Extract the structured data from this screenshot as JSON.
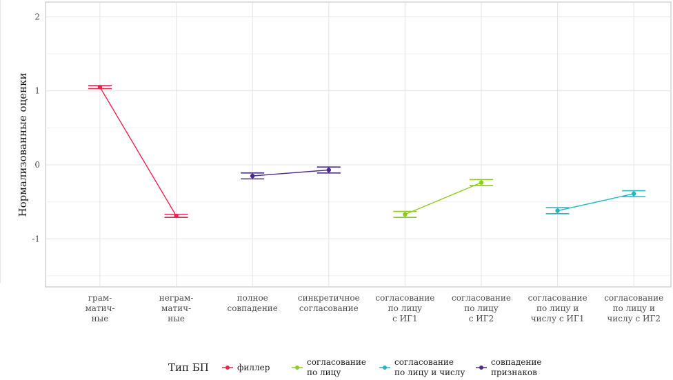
{
  "chart_data": {
    "type": "line",
    "ylabel": "Нормализованные оценки",
    "ylim": [
      -1.65,
      2.2
    ],
    "yticks": [
      "2",
      "1",
      "0",
      "-1"
    ],
    "grid": true,
    "categories": [
      [
        "грам-",
        "матич-",
        "ные"
      ],
      [
        "неграм-",
        "матич-",
        "ные"
      ],
      [
        "полное",
        "совпадение"
      ],
      [
        "синкретичное",
        "согласование"
      ],
      [
        "согласование",
        "по лицу",
        "с ИГ1"
      ],
      [
        "согласование",
        "по лицу",
        "с ИГ2"
      ],
      [
        "согласование",
        "по лицу и",
        "числу с ИГ1"
      ],
      [
        "согласование",
        "по лицу и",
        "числу с ИГ2"
      ]
    ],
    "series": [
      {
        "name": "филлер",
        "color": "#e8254f",
        "x": [
          0,
          1
        ],
        "values": [
          1.05,
          -0.69
        ],
        "lower": [
          1.03,
          -0.71
        ],
        "upper": [
          1.07,
          -0.67
        ]
      },
      {
        "name": "совпадение признаков",
        "color": "#4b2a8a",
        "x": [
          2,
          3
        ],
        "values": [
          -0.15,
          -0.07
        ],
        "lower": [
          -0.19,
          -0.11
        ],
        "upper": [
          -0.11,
          -0.03
        ]
      },
      {
        "name": "согласование по лицу",
        "color": "#8ccc1f",
        "x": [
          4,
          5
        ],
        "values": [
          -0.67,
          -0.24
        ],
        "lower": [
          -0.71,
          -0.28
        ],
        "upper": [
          -0.63,
          -0.2
        ]
      },
      {
        "name": "согласование по лицу и числу",
        "color": "#1fb8c0",
        "x": [
          6,
          7
        ],
        "values": [
          -0.62,
          -0.39
        ],
        "lower": [
          -0.66,
          -0.43
        ],
        "upper": [
          -0.58,
          -0.35
        ]
      }
    ],
    "legend": {
      "title": "Тип БП",
      "position": "bottom",
      "items": [
        {
          "label": [
            "филлер"
          ],
          "color": "#e8254f"
        },
        {
          "label": [
            "согласование",
            "по лицу"
          ],
          "color": "#8ccc1f"
        },
        {
          "label": [
            "согласование",
            "по лицу и числу"
          ],
          "color": "#1fb8c0"
        },
        {
          "label": [
            "совпадение",
            "признаков"
          ],
          "color": "#4b2a8a"
        }
      ]
    }
  }
}
